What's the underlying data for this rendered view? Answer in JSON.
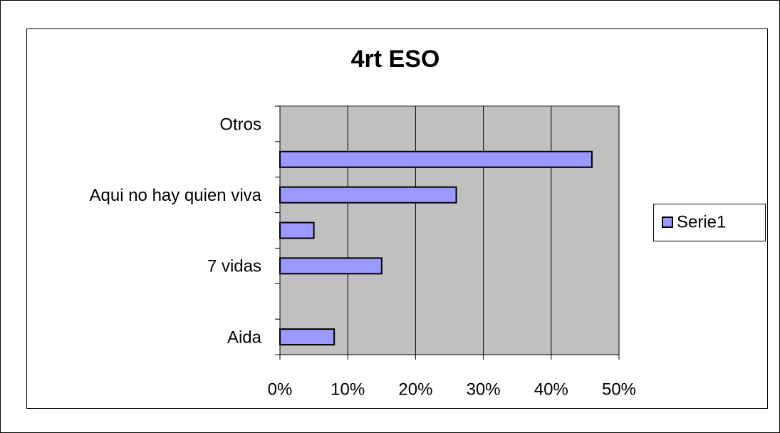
{
  "chart_data": {
    "type": "hbar",
    "title": "4rt ESO",
    "categories": [
      "Aida",
      null,
      "7 vidas",
      null,
      "Aqui no hay quien viva",
      null,
      "Otros"
    ],
    "series": [
      {
        "name": "Serie1",
        "color": "#9999ff",
        "values": [
          8,
          0,
          15,
          5,
          26,
          46,
          0
        ]
      }
    ],
    "xlim": [
      0,
      50
    ],
    "xticks": [
      {
        "value": 0,
        "label": "0%"
      },
      {
        "value": 10,
        "label": "10%"
      },
      {
        "value": 20,
        "label": "20%"
      },
      {
        "value": 30,
        "label": "30%"
      },
      {
        "value": 40,
        "label": "40%"
      },
      {
        "value": 50,
        "label": "50%"
      }
    ],
    "grid": true,
    "legend": "right"
  }
}
